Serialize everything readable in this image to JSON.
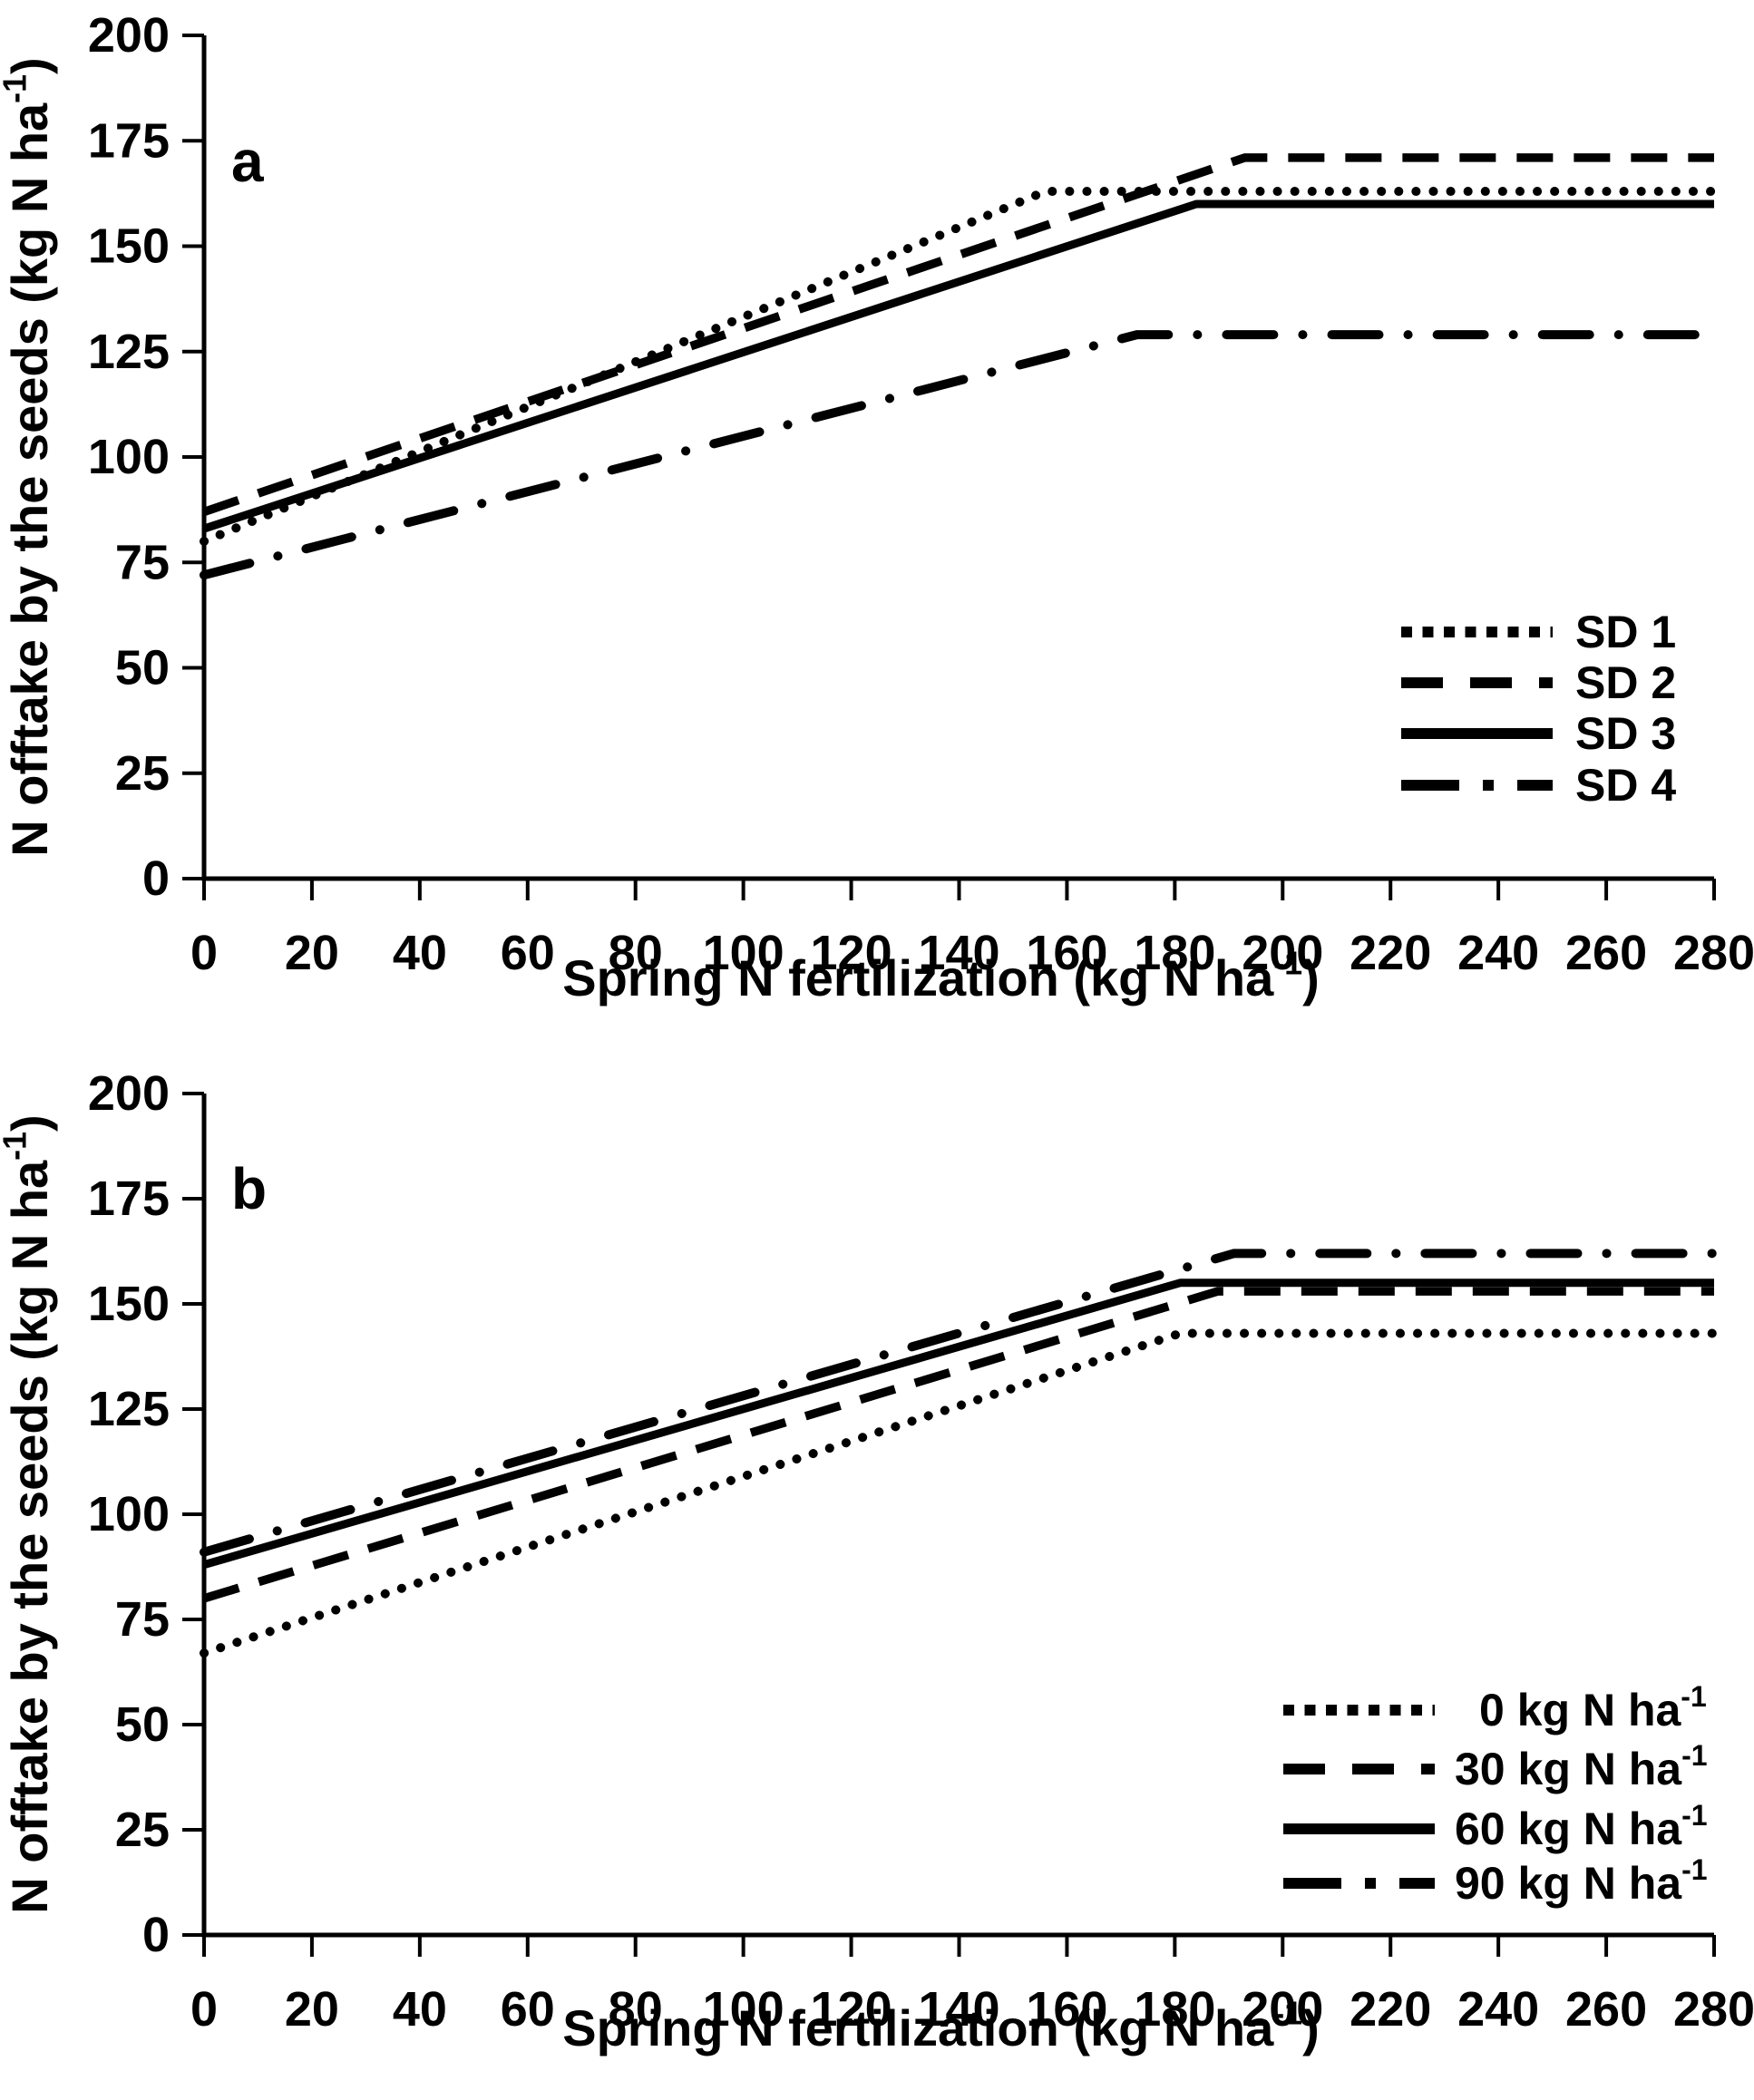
{
  "figure": {
    "background": "#ffffff",
    "line_color": "#000000"
  },
  "chart_data": [
    {
      "id": "a",
      "type": "line",
      "panel_label": "a",
      "xlabel": "Spring N fertilization (kg N ha⁻¹)",
      "ylabel": "N offtake by the seeds (kg N ha⁻¹)",
      "xlabel_parts": {
        "pre": "Spring N fertilization (kg N ha",
        "sup": "-1",
        "post": ")"
      },
      "ylabel_parts": {
        "pre": "N offtake by the seeds  (kg N ha",
        "sup": "-1",
        "post": ")"
      },
      "xlim": [
        0,
        280
      ],
      "ylim": [
        0,
        200
      ],
      "x_ticks": [
        "0",
        "20",
        "40",
        "60",
        "80",
        "100",
        "120",
        "140",
        "160",
        "180",
        "200",
        "220",
        "240",
        "260",
        "280"
      ],
      "y_ticks": [
        "0",
        "25",
        "50",
        "75",
        "100",
        "125",
        "150",
        "175",
        "200"
      ],
      "grid": false,
      "legend_position": "right-middle",
      "series": [
        {
          "name": "SD 1",
          "name_parts": {
            "pre": "SD 1",
            "sup": ""
          },
          "style": "dotted",
          "legend_pad": 0,
          "points": [
            [
              0,
              80
            ],
            [
              156,
              163
            ],
            [
              280,
              163
            ]
          ]
        },
        {
          "name": "SD 2",
          "name_parts": {
            "pre": "SD 2",
            "sup": ""
          },
          "style": "dashed",
          "legend_pad": 0,
          "points": [
            [
              0,
              87
            ],
            [
              193,
              171
            ],
            [
              280,
              171
            ]
          ]
        },
        {
          "name": "SD 3",
          "name_parts": {
            "pre": "SD 3",
            "sup": ""
          },
          "style": "solid",
          "legend_pad": 0,
          "points": [
            [
              0,
              83
            ],
            [
              184,
              160
            ],
            [
              280,
              160
            ]
          ]
        },
        {
          "name": "SD 4",
          "name_parts": {
            "pre": "SD 4",
            "sup": ""
          },
          "style": "dashdot",
          "legend_pad": 0,
          "points": [
            [
              0,
              72
            ],
            [
              173,
              129
            ],
            [
              280,
              129
            ]
          ]
        }
      ]
    },
    {
      "id": "b",
      "type": "line",
      "panel_label": "b",
      "xlabel": "Spring N fertilization (kg N ha⁻¹)",
      "ylabel": "N offtake by the seeds (kg N ha⁻¹)",
      "xlabel_parts": {
        "pre": "Spring N fertilization (kg N ha",
        "sup": "-1",
        "post": ")"
      },
      "ylabel_parts": {
        "pre": "N offtake by the seeds (kg N ha",
        "sup": "-1",
        "post": ")"
      },
      "xlim": [
        0,
        280
      ],
      "ylim": [
        0,
        200
      ],
      "x_ticks": [
        "0",
        "20",
        "40",
        "60",
        "80",
        "100",
        "120",
        "140",
        "160",
        "180",
        "200",
        "220",
        "240",
        "260",
        "280"
      ],
      "y_ticks": [
        "0",
        "25",
        "50",
        "75",
        "100",
        "125",
        "150",
        "175",
        "200"
      ],
      "grid": false,
      "legend_position": "right-middle",
      "series": [
        {
          "name": "0 kg N ha⁻¹",
          "name_parts": {
            "pre": "0 kg N ha",
            "sup": "-1"
          },
          "style": "dotted",
          "legend_pad": 27,
          "points": [
            [
              0,
              67
            ],
            [
              181,
              143
            ],
            [
              280,
              143
            ]
          ]
        },
        {
          "name": "30 kg N ha⁻¹",
          "name_parts": {
            "pre": "30 kg N ha",
            "sup": "-1"
          },
          "style": "dashed",
          "legend_pad": 0,
          "points": [
            [
              0,
              80
            ],
            [
              188,
              153
            ],
            [
              280,
              153
            ]
          ]
        },
        {
          "name": "60 kg N ha⁻¹",
          "name_parts": {
            "pre": "60 kg N ha",
            "sup": "-1"
          },
          "style": "solid",
          "legend_pad": 0,
          "points": [
            [
              0,
              88
            ],
            [
              181,
              155
            ],
            [
              280,
              155
            ]
          ]
        },
        {
          "name": "90 kg N ha⁻¹",
          "name_parts": {
            "pre": "90 kg N ha",
            "sup": "-1"
          },
          "style": "dashdot",
          "legend_pad": 0,
          "points": [
            [
              0,
              91
            ],
            [
              191,
              162
            ],
            [
              280,
              162
            ]
          ]
        }
      ]
    }
  ]
}
